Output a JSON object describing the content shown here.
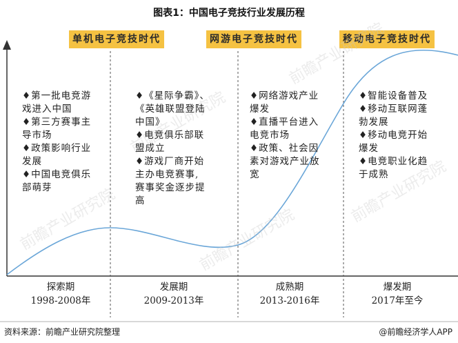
{
  "title": "图表1：中国电子竞技行业发展历程",
  "eras": [
    "单机电子竞技时代",
    "网游电子竞技时代",
    "移动电子竞技时代"
  ],
  "columns": [
    {
      "lines": [
        "♦第一批电竞游",
        "戏进入中国",
        "♦第三方赛事主",
        "导市场",
        "♦政策影响行业",
        "发展",
        "♦中国电竞俱乐",
        "部萌芽"
      ],
      "stage_name": "探索期",
      "stage_years": "1998-2008年"
    },
    {
      "lines": [
        "♦《星际争霸》、",
        "《英雄联盟登陆",
        "中国》",
        "♦电竞俱乐部联",
        "盟成立",
        "♦游戏厂商开始",
        "主办电竞赛事,",
        "赛事奖金逐步提",
        "高"
      ],
      "stage_name": "发展期",
      "stage_years": "2009-2013年"
    },
    {
      "lines": [
        "♦网络游戏产业",
        "爆发",
        "♦直播平台进入",
        "电竞市场",
        "♦政策、社会因",
        "素对游戏产业放",
        "宽"
      ],
      "stage_name": "成熟期",
      "stage_years": "2013-2016年"
    },
    {
      "lines": [
        "♦智能设备普及",
        "♦移动互联网蓬",
        "勃发展",
        "♦移动电竞开始",
        "爆发",
        "♦电竞职业化趋",
        "于成熟"
      ],
      "stage_name": "爆发期",
      "stage_years": "2017年至今"
    }
  ],
  "source": "资料来源：前瞻产业研究院整理",
  "brand": "@前瞻经济学人APP",
  "watermark": "前瞻产业研究院",
  "colors": {
    "era_bg": "#f5c242",
    "curve": "#6aa6d8",
    "axis": "#333333",
    "divider": "#555555"
  }
}
